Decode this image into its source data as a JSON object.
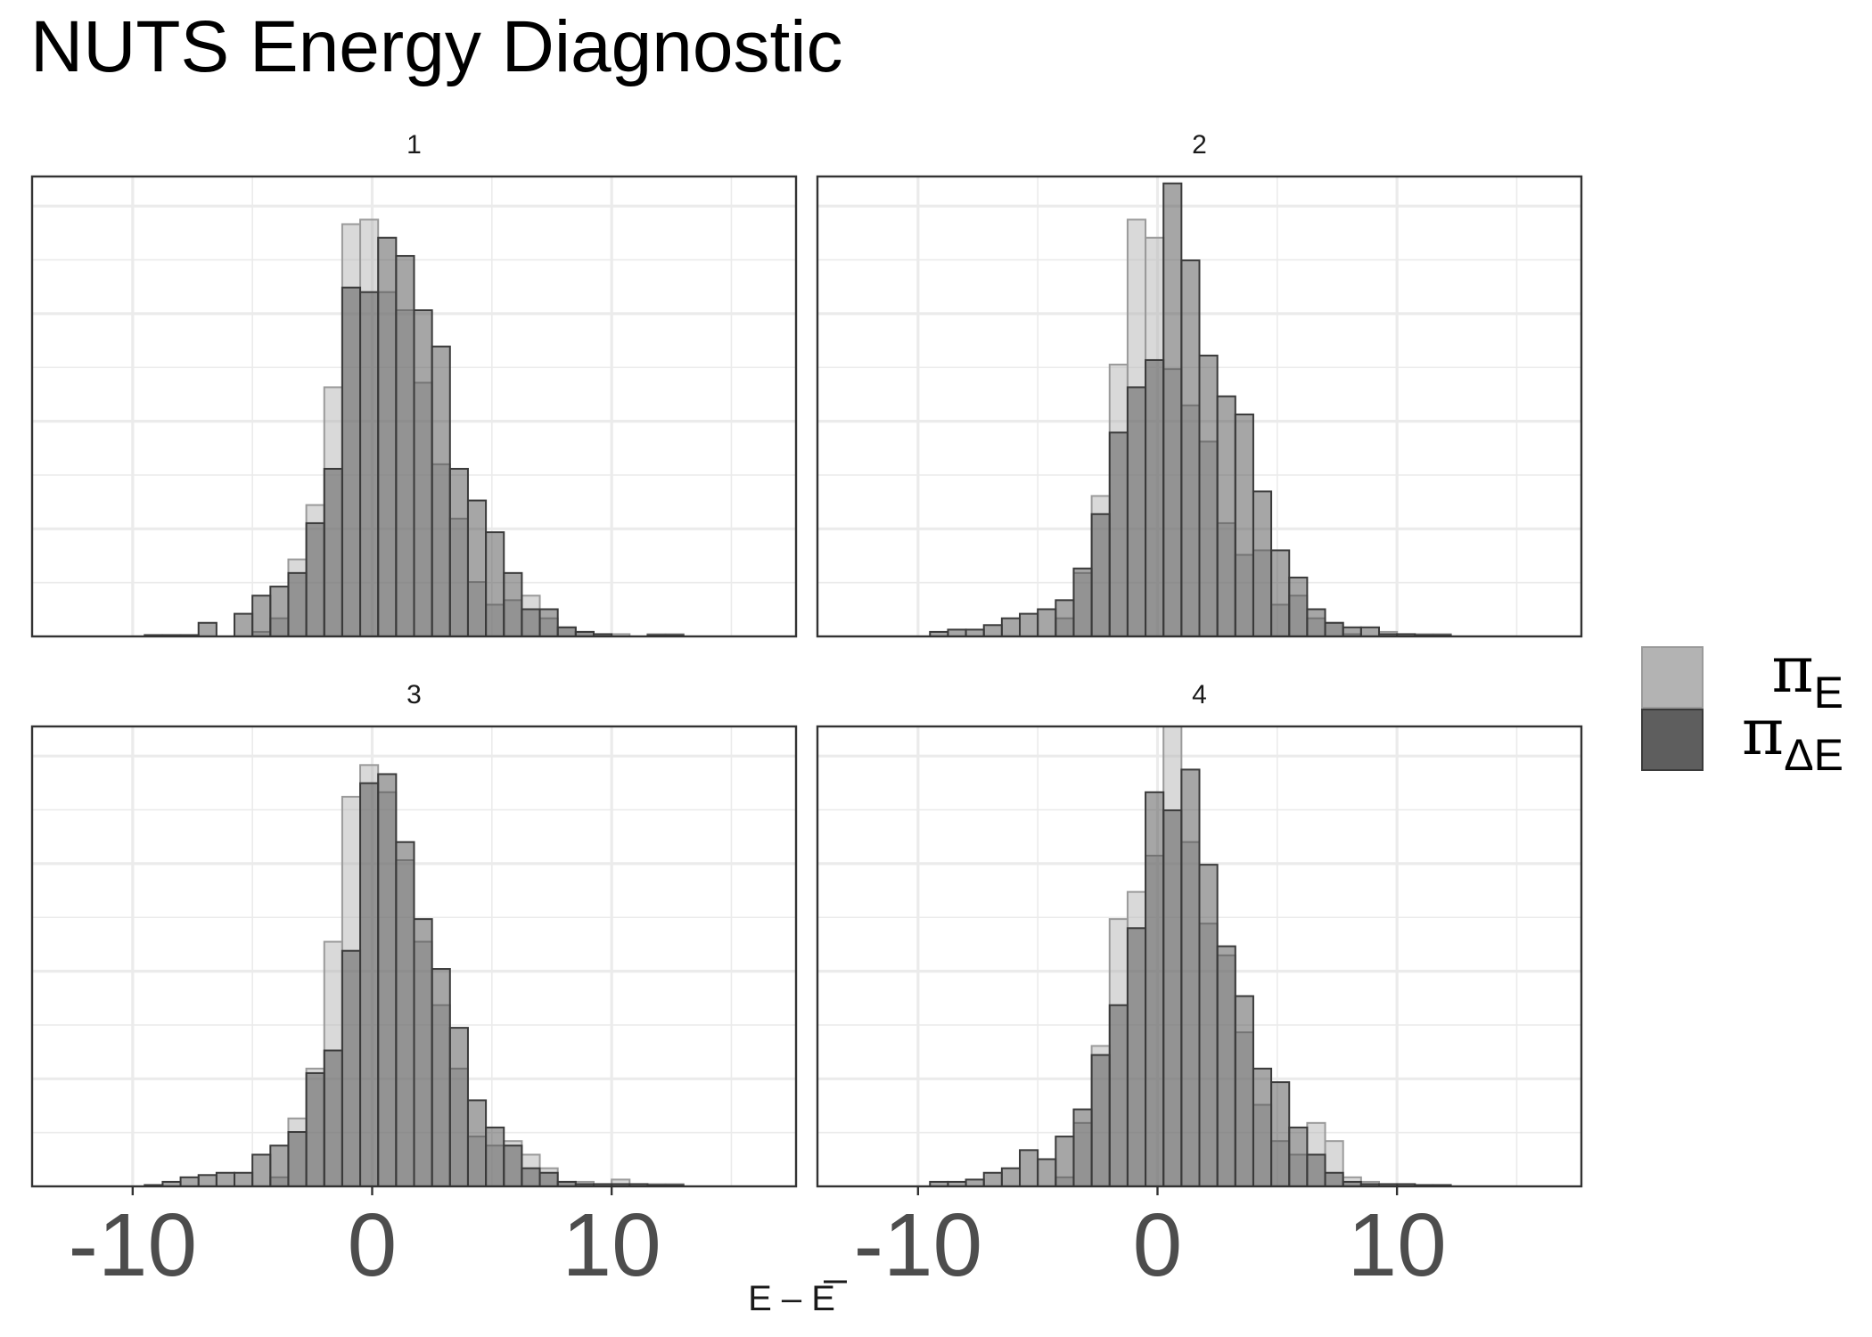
{
  "chart_data": {
    "type": "bar",
    "title": "NUTS Energy Diagnostic",
    "xlabel": "E – E",
    "xlim": [
      -14.2,
      17.7
    ],
    "xticks": [
      -10,
      0,
      10
    ],
    "ylim": [
      0,
      1.0
    ],
    "grid": true,
    "legend_position": "right",
    "series_colors": {
      "pi_E": "#b3b3b3",
      "pi_dE": "#4d4d4d"
    },
    "legend": [
      {
        "symbol": "π",
        "subscript": "E",
        "series": "pi_E"
      },
      {
        "symbol": "π",
        "subscript": "ΔE",
        "series": "pi_dE"
      }
    ],
    "panels": [
      {
        "label": "1",
        "bins": [
          -9.5,
          -8.75,
          -8.0,
          -7.25,
          -6.5,
          -5.75,
          -5.0,
          -4.25,
          -3.5,
          -2.75,
          -2.0,
          -1.25,
          -0.5,
          0.25,
          1.0,
          1.75,
          2.5,
          3.25,
          4.0,
          4.75,
          5.5,
          6.25,
          7.0,
          7.75,
          8.5,
          9.25,
          10.0,
          10.75,
          11.5,
          12.25,
          13.0
        ],
        "pi_E": [
          0.0,
          0.0,
          0.0,
          0.0,
          0.0,
          0.0,
          0.01,
          0.04,
          0.17,
          0.29,
          0.55,
          0.91,
          0.92,
          0.76,
          0.72,
          0.56,
          0.38,
          0.26,
          0.12,
          0.07,
          0.08,
          0.09,
          0.04,
          0.02,
          0.01,
          0.005,
          0.005,
          0.0,
          0.005,
          0.005,
          0.0
        ],
        "pi_dE": [
          0.003,
          0.003,
          0.003,
          0.03,
          0.0,
          0.05,
          0.09,
          0.11,
          0.14,
          0.25,
          0.37,
          0.77,
          0.76,
          0.88,
          0.84,
          0.72,
          0.64,
          0.37,
          0.3,
          0.23,
          0.14,
          0.06,
          0.06,
          0.02,
          0.01,
          0.005,
          0.0,
          0.0,
          0.003,
          0.003,
          0.0
        ]
      },
      {
        "label": "2",
        "bins": [
          -9.5,
          -8.75,
          -8.0,
          -7.25,
          -6.5,
          -5.75,
          -5.0,
          -4.25,
          -3.5,
          -2.75,
          -2.0,
          -1.25,
          -0.5,
          0.25,
          1.0,
          1.75,
          2.5,
          3.25,
          4.0,
          4.75,
          5.5,
          6.25,
          7.0,
          7.75,
          8.5,
          9.25,
          10.0,
          10.75,
          11.5,
          12.25,
          13.0
        ],
        "pi_E": [
          0.0,
          0.0,
          0.0,
          0.0,
          0.0,
          0.0,
          0.0,
          0.04,
          0.14,
          0.31,
          0.6,
          0.92,
          0.88,
          0.59,
          0.51,
          0.43,
          0.25,
          0.18,
          0.19,
          0.07,
          0.09,
          0.04,
          0.03,
          0.005,
          0.0,
          0.01,
          0.005,
          0.005,
          0.005,
          0.0,
          0.0
        ],
        "pi_dE": [
          0.01,
          0.015,
          0.015,
          0.025,
          0.04,
          0.05,
          0.06,
          0.08,
          0.15,
          0.27,
          0.45,
          0.55,
          0.61,
          1.0,
          0.83,
          0.62,
          0.53,
          0.49,
          0.32,
          0.19,
          0.13,
          0.06,
          0.03,
          0.02,
          0.02,
          0.005,
          0.005,
          0.003,
          0.003,
          0.0,
          0.0
        ]
      },
      {
        "label": "3",
        "bins": [
          -9.5,
          -8.75,
          -8.0,
          -7.25,
          -6.5,
          -5.75,
          -5.0,
          -4.25,
          -3.5,
          -2.75,
          -2.0,
          -1.25,
          -0.5,
          0.25,
          1.0,
          1.75,
          2.5,
          3.25,
          4.0,
          4.75,
          5.5,
          6.25,
          7.0,
          7.75,
          8.5,
          9.25,
          10.0,
          10.75,
          11.5,
          12.25,
          13.0
        ],
        "pi_E": [
          0.0,
          0.0,
          0.0,
          0.0,
          0.0,
          0.0,
          0.0,
          0.02,
          0.15,
          0.26,
          0.54,
          0.86,
          0.93,
          0.87,
          0.72,
          0.54,
          0.4,
          0.26,
          0.11,
          0.09,
          0.1,
          0.07,
          0.04,
          0.01,
          0.01,
          0.005,
          0.015,
          0.005,
          0.005,
          0.005,
          0.0
        ],
        "pi_dE": [
          0.003,
          0.01,
          0.02,
          0.025,
          0.03,
          0.03,
          0.07,
          0.09,
          0.12,
          0.25,
          0.3,
          0.52,
          0.89,
          0.91,
          0.76,
          0.59,
          0.48,
          0.35,
          0.19,
          0.13,
          0.09,
          0.04,
          0.03,
          0.01,
          0.005,
          0.005,
          0.005,
          0.005,
          0.003,
          0.003,
          0.0
        ]
      },
      {
        "label": "4",
        "bins": [
          -9.5,
          -8.75,
          -8.0,
          -7.25,
          -6.5,
          -5.75,
          -5.0,
          -4.25,
          -3.5,
          -2.75,
          -2.0,
          -1.25,
          -0.5,
          0.25,
          1.0,
          1.75,
          2.5,
          3.25,
          4.0,
          4.75,
          5.5,
          6.25,
          7.0,
          7.75,
          8.5,
          9.25,
          10.0,
          10.75,
          11.5,
          12.25,
          13.0
        ],
        "pi_E": [
          0.0,
          0.0,
          0.0,
          0.0,
          0.0,
          0.0,
          0.0,
          0.02,
          0.14,
          0.31,
          0.59,
          0.65,
          0.73,
          1.05,
          0.76,
          0.58,
          0.51,
          0.34,
          0.18,
          0.1,
          0.07,
          0.14,
          0.1,
          0.02,
          0.01,
          0.005,
          0.005,
          0.0,
          0.0,
          0.0,
          0.0
        ],
        "pi_dE": [
          0.01,
          0.01,
          0.015,
          0.03,
          0.04,
          0.08,
          0.06,
          0.11,
          0.17,
          0.29,
          0.4,
          0.57,
          0.87,
          0.83,
          0.92,
          0.71,
          0.53,
          0.42,
          0.26,
          0.23,
          0.13,
          0.07,
          0.03,
          0.01,
          0.005,
          0.005,
          0.005,
          0.003,
          0.003,
          0.0,
          0.0
        ]
      }
    ]
  }
}
